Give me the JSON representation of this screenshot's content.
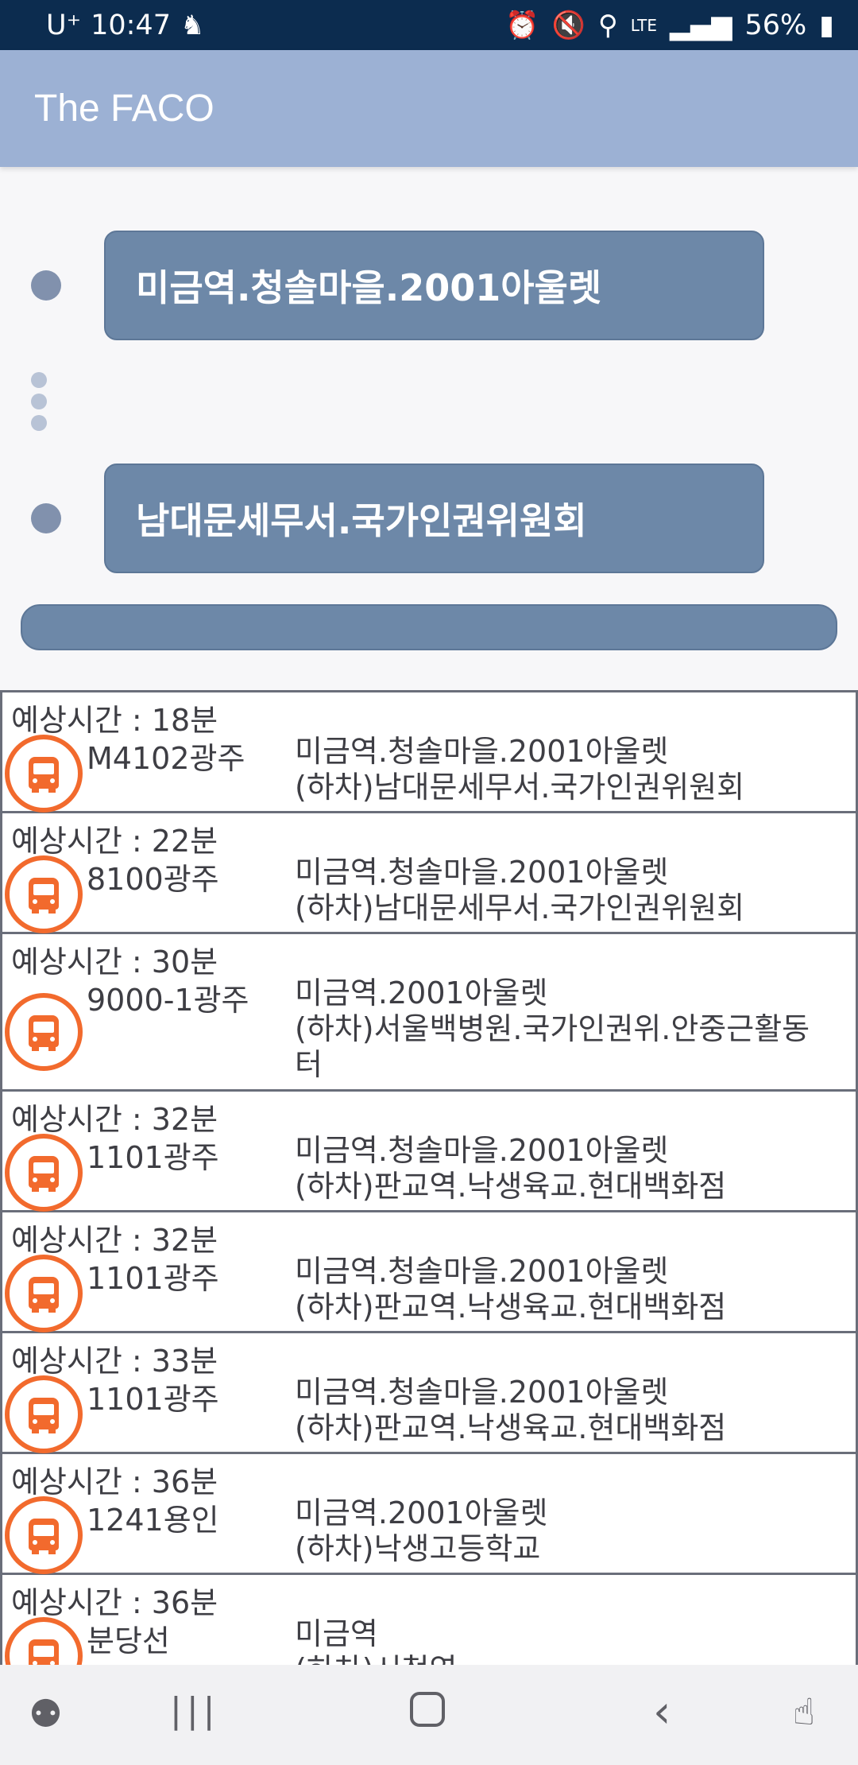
{
  "status_bar": {
    "carrier": "U⁺",
    "time": "10:47",
    "network": "LTE",
    "battery": "56%"
  },
  "app_bar": {
    "title": "The FACO"
  },
  "route": {
    "origin": "미금역.청솔마을.2001아울렛",
    "destination": "남대문세무서.국가인권위원회",
    "search_label": ""
  },
  "results": [
    {
      "time": "예상시간 : 18분",
      "bus": "M4102광주",
      "stops": [
        "미금역.청솔마을.2001아울렛",
        "(하차)남대문세무서.국가인권위원회"
      ]
    },
    {
      "time": "예상시간 : 22분",
      "bus": "8100광주",
      "stops": [
        "미금역.청솔마을.2001아울렛",
        "(하차)남대문세무서.국가인권위원회"
      ]
    },
    {
      "time": "예상시간 : 30분",
      "bus": "9000-1광주",
      "stops": [
        "미금역.2001아울렛",
        "(하차)서울백병원.국가인권위.안중근활동",
        "터"
      ]
    },
    {
      "time": "예상시간 : 32분",
      "bus": "1101광주",
      "stops": [
        "미금역.청솔마을.2001아울렛",
        "(하차)판교역.낙생육교.현대백화점"
      ]
    },
    {
      "time": "예상시간 : 32분",
      "bus": "1101광주",
      "stops": [
        "미금역.청솔마을.2001아울렛",
        "(하차)판교역.낙생육교.현대백화점"
      ]
    },
    {
      "time": "예상시간 : 33분",
      "bus": "1101광주",
      "stops": [
        "미금역.청솔마을.2001아울렛",
        "(하차)판교역.낙생육교.현대백화점"
      ]
    },
    {
      "time": "예상시간 : 36분",
      "bus": "1241용인",
      "stops": [
        "미금역.2001아울렛",
        "(하차)낙생고등학교"
      ]
    },
    {
      "time": "예상시간 : 36분",
      "bus": "분당선",
      "stops": [
        "미금역",
        "(하차)시청역"
      ]
    }
  ],
  "colors": {
    "status_bar": "#0c2c4f",
    "app_bar": "#9cb1d4",
    "stop_box": "#6d88a8",
    "bus_icon": "#f26a2d"
  }
}
